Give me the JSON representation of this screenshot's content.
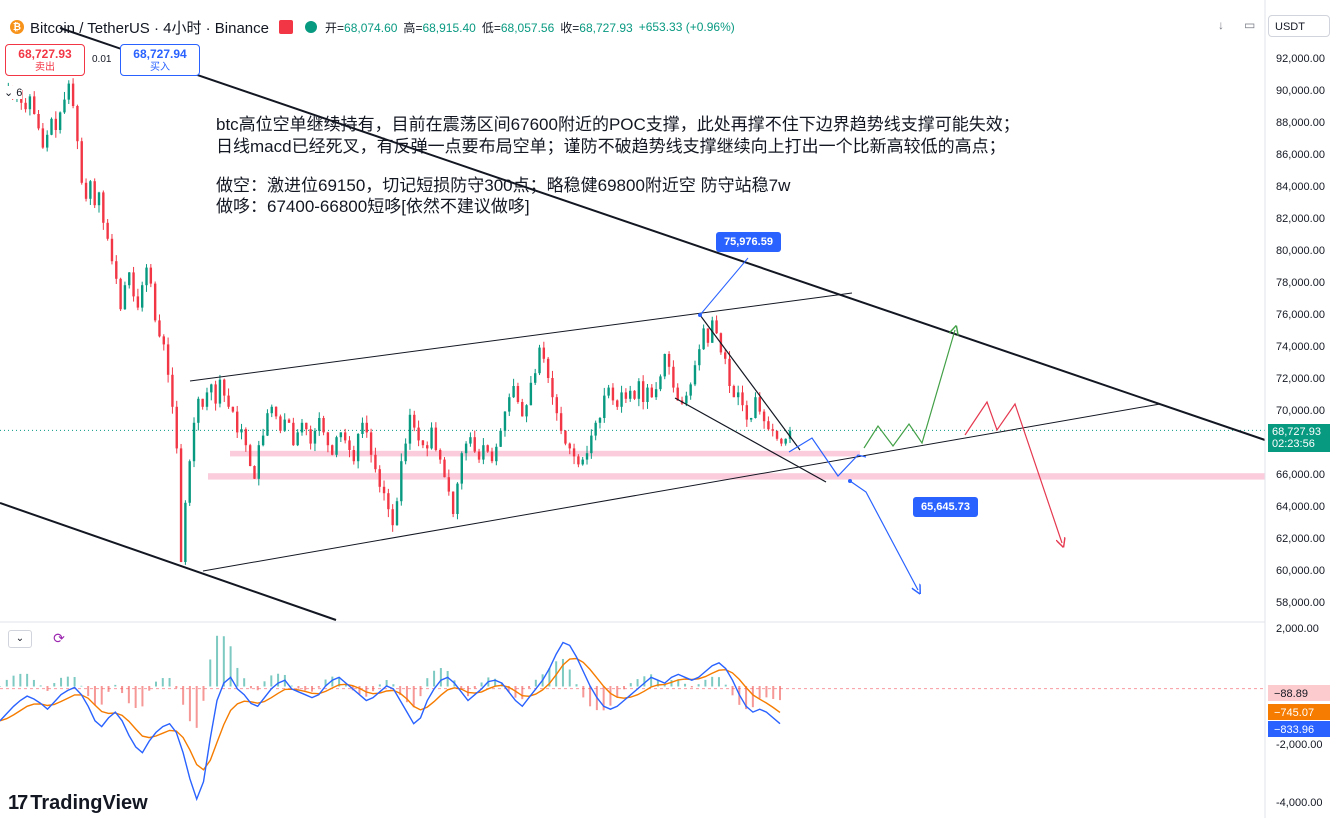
{
  "header": {
    "symbol": "Bitcoin / TetherUS · 4小时 · Binance",
    "open_label": "开",
    "open": "68,074.60",
    "high_label": "高",
    "high": "68,915.40",
    "low_label": "低",
    "low": "68,057.56",
    "close_label": "收",
    "close": "68,727.93",
    "change": "+653.33 (+0.96%)"
  },
  "trade": {
    "sell_price": "68,727.93",
    "sell_label": "卖出",
    "spread": "0.01",
    "buy_price": "68,727.94",
    "buy_label": "买入"
  },
  "interval_badge": "6",
  "currency": "USDT",
  "brand": "TradingView",
  "annotations": {
    "line1": "btc高位空单继续持有，目前在震荡区间67600附近的POC支撑，此处再撑不住下边界趋势线支撑可能失效；",
    "line2": "日线macd已经死叉，有反弹一点要布局空单；谨防不破趋势线支撑继续向上打出一个比新高较低的高点；",
    "line3": "做空：激进位69150，切记短损防守300点；略稳健69800附近空 防守站稳7w",
    "line4": "做哆：67400-66800短哆[依然不建议做哆]"
  },
  "price_tags": {
    "high_tag": "75,976.59",
    "low_tag": "65,645.73"
  },
  "price_axis": {
    "last_price": "68,727.93",
    "countdown": "02:23:56",
    "last_color": "#089981"
  },
  "chart_data": [
    {
      "type": "candlestick",
      "pane": "price",
      "symbol": "BTCUSDT",
      "interval": "4h",
      "ylim": [
        57000,
        93000
      ],
      "y_ticks": [
        "92,000.00",
        "90,000.00",
        "88,000.00",
        "86,000.00",
        "84,000.00",
        "82,000.00",
        "80,000.00",
        "78,000.00",
        "76,000.00",
        "74,000.00",
        "72,000.00",
        "70,000.00",
        "66,000.00",
        "64,000.00",
        "62,000.00",
        "60,000.00",
        "58,000.00"
      ],
      "y_tick_values": [
        92000,
        90000,
        88000,
        86000,
        84000,
        82000,
        80000,
        78000,
        76000,
        74000,
        72000,
        70000,
        66000,
        64000,
        62000,
        60000,
        58000
      ],
      "close_path": [
        89800,
        90200,
        89500,
        90000,
        89200,
        88800,
        89600,
        88500,
        87600,
        86400,
        87200,
        88200,
        87500,
        88600,
        89400,
        90400,
        89000,
        86800,
        84200,
        83200,
        84300,
        82800,
        83600,
        81700,
        80700,
        79300,
        78200,
        76300,
        77800,
        78600,
        77100,
        76400,
        77800,
        78900,
        77900,
        75600,
        74600,
        74100,
        72200,
        70200,
        67600,
        60500,
        64200,
        66800,
        69200,
        70700,
        70200,
        71100,
        71600,
        70400,
        71900,
        70900,
        70200,
        69900,
        68600,
        68800,
        67800,
        66500,
        65700,
        67800,
        68400,
        69800,
        70200,
        69600,
        68700,
        69400,
        69200,
        67800,
        68600,
        69200,
        68800,
        67900,
        68700,
        69500,
        68600,
        67800,
        67200,
        68300,
        68600,
        68100,
        67500,
        66800,
        68500,
        69200,
        68600,
        67200,
        66300,
        65200,
        64800,
        63800,
        62800,
        64300,
        66800,
        67900,
        69700,
        68900,
        68100,
        67800,
        67600,
        68900,
        67500,
        66900,
        65800,
        64900,
        63500,
        65400,
        67300,
        67900,
        68300,
        67400,
        66900,
        67800,
        67400,
        66800,
        67700,
        68700,
        69900,
        70800,
        71500,
        70500,
        69600,
        70300,
        71700,
        72300,
        73900,
        73200,
        72000,
        70800,
        69800,
        68700,
        67900,
        67600,
        67100,
        66600,
        66900,
        67300,
        68400,
        69200,
        69500,
        70900,
        71400,
        70600,
        70200,
        71100,
        70700,
        71200,
        70700,
        71800,
        70500,
        71400,
        70800,
        71300,
        72100,
        73500,
        72700,
        71400,
        70600,
        70400,
        70900,
        71600,
        72800,
        73800,
        75100,
        74200,
        75600,
        74800,
        73600,
        73200,
        71500,
        70800,
        71100,
        70300,
        69400,
        69500,
        70800,
        69900,
        69300,
        68800,
        68700,
        68200,
        67900,
        68200,
        68700
      ],
      "support_zones": [
        [
          67100,
          67450
        ],
        [
          65650,
          66050
        ]
      ],
      "lines": [
        {
          "name": "upper-downtrend",
          "from": [
            95000,
            "t0"
          ],
          "to": [
            68300,
            "t_end"
          ]
        },
        {
          "name": "lower-downtrend",
          "from": [
            64200,
            "t0"
          ],
          "to": [
            57300,
            "t_mid"
          ]
        },
        {
          "name": "channel-upper",
          "from": [
            71700,
            "tA"
          ],
          "to": [
            77300,
            "tB"
          ]
        },
        {
          "name": "channel-lower",
          "from": [
            60000,
            "tA"
          ],
          "to": [
            70500,
            "tC"
          ]
        }
      ],
      "price_labels": [
        75976.59,
        65645.73
      ],
      "last_price": 68727.93
    },
    {
      "type": "macd",
      "pane": "indicator",
      "y_ticks": [
        "2,000.00",
        "-2,000.00",
        "-4,000.00"
      ],
      "y_tick_values": [
        2000,
        -2000,
        -4000
      ],
      "ylim": [
        -4200,
        2300
      ],
      "current": {
        "histogram": -88.89,
        "signal": -745.07,
        "macd": -833.96
      },
      "current_labels": [
        "−88.89",
        "−745.07",
        "−833.96"
      ],
      "macd_path": [
        -1200,
        -950,
        -700,
        -500,
        -350,
        -450,
        -600,
        -800,
        -550,
        -300,
        -150,
        -50,
        -300,
        -700,
        -1200,
        -1400,
        -1100,
        -900,
        -1200,
        -1700,
        -2100,
        -2300,
        -1900,
        -1600,
        -1400,
        -1300,
        -1600,
        -2300,
        -3200,
        -3900,
        -3300,
        -1800,
        -500,
        100,
        300,
        -100,
        -300,
        -600,
        -700,
        -400,
        -100,
        100,
        200,
        -100,
        -200,
        -300,
        -400,
        -300,
        0,
        200,
        300,
        100,
        -100,
        -300,
        -500,
        -400,
        -200,
        0,
        -100,
        -500,
        -900,
        -1300,
        -1100,
        -500,
        -100,
        200,
        300,
        100,
        -200,
        -500,
        -300,
        -100,
        150,
        200,
        100,
        -200,
        -500,
        -700,
        -400,
        -100,
        200,
        600,
        1100,
        1500,
        1400,
        1000,
        500,
        0,
        -400,
        -700,
        -800,
        -700,
        -500,
        -300,
        -100,
        100,
        300,
        200,
        100,
        300,
        400,
        300,
        200,
        300,
        500,
        700,
        800,
        600,
        200,
        -300,
        -700,
        -900,
        -800,
        -900,
        -1100,
        -1300
      ]
    }
  ]
}
